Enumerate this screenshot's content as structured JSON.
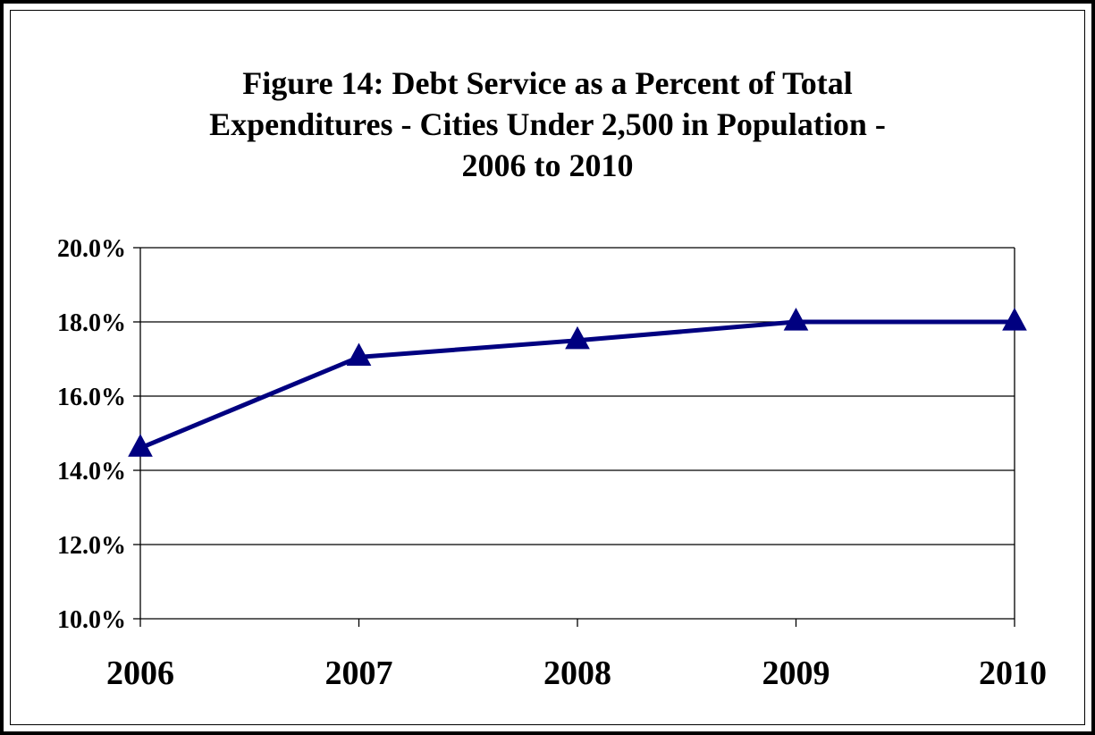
{
  "chart_data": {
    "type": "line",
    "title_lines": [
      "Figure 14:  Debt Service as a Percent of Total",
      "Expenditures - Cities Under 2,500 in Population -",
      "2006 to 2010"
    ],
    "categories": [
      "2006",
      "2007",
      "2008",
      "2009",
      "2010"
    ],
    "series": [
      {
        "values": [
          14.6,
          17.05,
          17.5,
          18.0,
          18.0
        ]
      }
    ],
    "y_ticks": [
      "20.0%",
      "18.0%",
      "16.0%",
      "14.0%",
      "12.0%",
      "10.0%"
    ],
    "ylim": [
      10,
      20
    ],
    "y_tick_values": [
      20,
      18,
      16,
      14,
      12,
      10
    ],
    "grid": true,
    "marker": "triangle",
    "colors": {
      "line": "#000080",
      "grid": "#000000"
    }
  }
}
